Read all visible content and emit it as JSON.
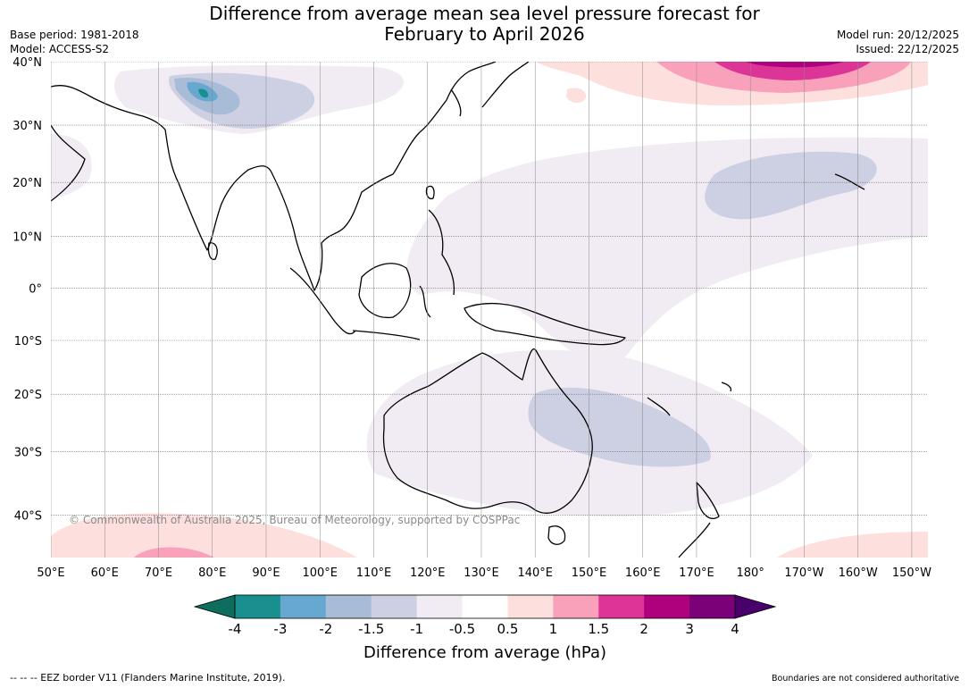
{
  "title": {
    "line1": "Difference from average mean sea level pressure forecast for",
    "line2": "February to April 2026"
  },
  "meta_left": {
    "base_period": "Base period: 1981-2018",
    "model": "Model: ACCESS-S2"
  },
  "meta_right": {
    "model_run": "Model run: 20/12/2025",
    "issued": "Issued: 22/12/2025"
  },
  "map": {
    "lat_labels": [
      "40°N",
      "30°N",
      "20°N",
      "10°N",
      "0°",
      "10°S",
      "20°S",
      "30°S",
      "40°S"
    ],
    "lon_labels": [
      "50°E",
      "60°E",
      "70°E",
      "80°E",
      "90°E",
      "100°E",
      "110°E",
      "120°E",
      "130°E",
      "140°E",
      "150°E",
      "160°E",
      "170°E",
      "180°",
      "170°W",
      "160°W",
      "150°W"
    ],
    "lat_values": [
      40,
      30,
      20,
      10,
      0,
      -10,
      -20,
      -30,
      -40
    ],
    "lon_values": [
      50,
      60,
      70,
      80,
      90,
      100,
      110,
      120,
      130,
      140,
      150,
      160,
      170,
      180,
      190,
      200,
      210
    ],
    "extent": {
      "lon_min": 50,
      "lon_max": 213,
      "lat_min": -46,
      "lat_max": 40
    },
    "copyright": "© Commonwealth of Australia 2025, Bureau of Meteorology, supported by COSPPac"
  },
  "colorbar": {
    "ticks": [
      "-4",
      "-3",
      "-2",
      "-1.5",
      "-1",
      "-0.5",
      "0.5",
      "1",
      "1.5",
      "2",
      "3",
      "4"
    ],
    "colors": [
      "#1a8f8f",
      "#66a8cf",
      "#a8bcd8",
      "#cdd0e3",
      "#f1ecf3",
      "#ffffff",
      "#fde0dd",
      "#f9a1bb",
      "#dd3497",
      "#ae017e",
      "#7a0177"
    ],
    "low_extend_color": "#0f6d5e",
    "high_extend_color": "#49006a",
    "label": "Difference from average (hPa)"
  },
  "footer": {
    "left": "--  --  -- EEZ border V11 (Flanders Marine Institute, 2019).",
    "right": "Boundaries are not considered authoritative"
  }
}
